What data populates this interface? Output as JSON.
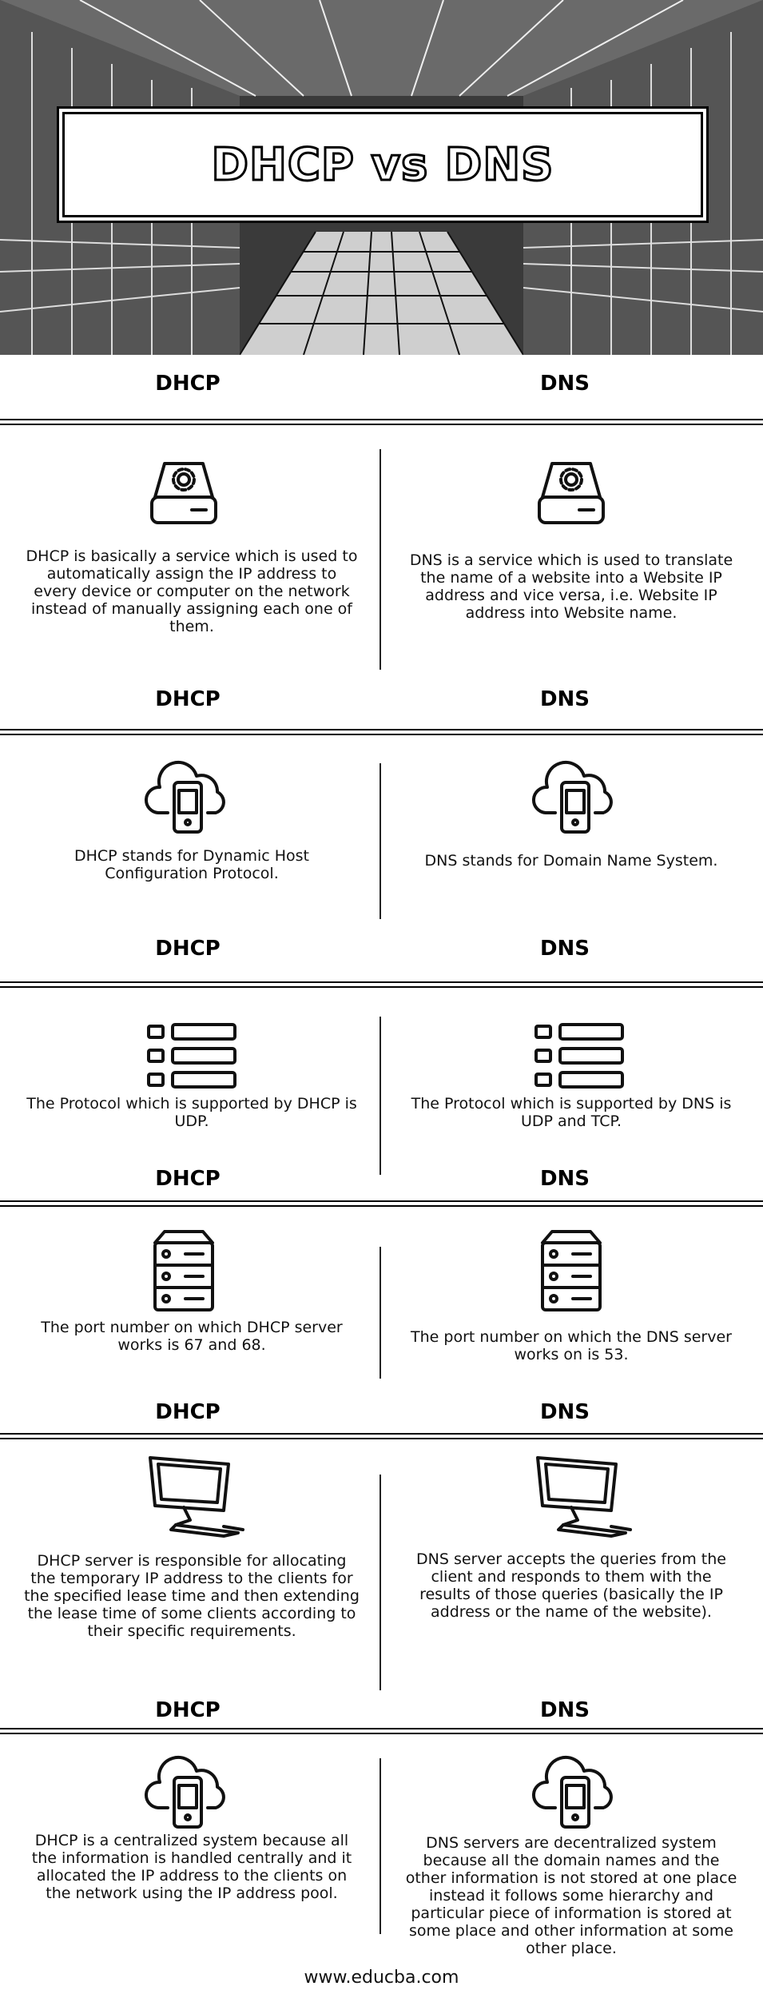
{
  "title": "DHCP vs DNS",
  "left_heading": "DHCP",
  "right_heading": "DNS",
  "rows": [
    {
      "left_icon": "gear-drive-icon",
      "right_icon": "gear-drive-icon",
      "left": "DHCP is basically a service which is used to automatically assign the IP address to every device or computer on the network instead of manually assigning each one of them.",
      "right": "DNS is a service which is used to translate the name of a website into a Website IP address and vice versa, i.e. Website IP address into Website name."
    },
    {
      "left_icon": "cloud-phone-icon",
      "right_icon": "cloud-phone-icon",
      "left": "DHCP stands for Dynamic Host Configuration Protocol.",
      "right": "DNS stands for Domain Name System."
    },
    {
      "left_icon": "list-icon",
      "right_icon": "list-icon",
      "left": "The Protocol which is supported by DHCP is UDP.",
      "right": "The Protocol which is supported by DNS is UDP and TCP."
    },
    {
      "left_icon": "server-icon",
      "right_icon": "server-icon",
      "left": "The port number on which DHCP server works is 67 and 68.",
      "right": "The port number on which the DNS server works on is 53."
    },
    {
      "left_icon": "monitor-icon",
      "right_icon": "monitor-icon",
      "left": "DHCP server is responsible for allocating the temporary IP address to the clients for the specified lease time and then extending the lease time of some clients according to their specific requirements.",
      "right": "DNS server accepts the queries from the client and responds to them with the results of those queries (basically the IP address or the name of the website)."
    },
    {
      "left_icon": "cloud-phone-icon",
      "right_icon": "cloud-phone-icon",
      "left": "DHCP is a centralized system because all the information is handled centrally and it allocated the IP address to the clients on the network using the IP address pool.",
      "right": "DNS servers are decentralized system because all the domain names and the other information is not stored at one place instead it follows some hierarchy and particular piece of information is stored at some place and other information at some other place."
    }
  ],
  "footer": "www.educba.com"
}
